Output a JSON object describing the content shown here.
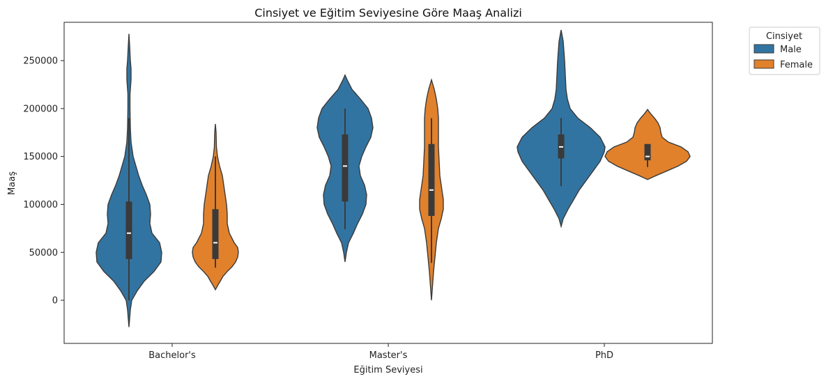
{
  "chart_data": {
    "type": "violin",
    "title": "Cinsiyet ve Eğitim Seviyesine Göre Maaş Analizi",
    "xlabel": "Eğitim Seviyesi",
    "ylabel": "Maaş",
    "categories": [
      "Bachelor's",
      "Master's",
      "PhD"
    ],
    "ylim": [
      -45000,
      290000
    ],
    "yticks": [
      0,
      50000,
      100000,
      150000,
      200000,
      250000
    ],
    "grid": false,
    "legend": {
      "title": "Cinsiyet",
      "position": "outside-top-right"
    },
    "series": [
      {
        "name": "Male",
        "color": "#3274a1",
        "violins": [
          {
            "category": "Bachelor's",
            "median": 70000,
            "q1": 43000,
            "q3": 103000,
            "whisker_low": 0,
            "whisker_high": 190000,
            "profile": [
              [
                -28000,
                0
              ],
              [
                -10000,
                2
              ],
              [
                0,
                4
              ],
              [
                10000,
                12
              ],
              [
                20000,
                22
              ],
              [
                30000,
                36
              ],
              [
                40000,
                46
              ],
              [
                50000,
                47
              ],
              [
                60000,
                44
              ],
              [
                70000,
                33
              ],
              [
                80000,
                30
              ],
              [
                90000,
                31
              ],
              [
                100000,
                30
              ],
              [
                110000,
                25
              ],
              [
                120000,
                19
              ],
              [
                130000,
                14
              ],
              [
                140000,
                10
              ],
              [
                150000,
                6
              ],
              [
                165000,
                3
              ],
              [
                180000,
                2
              ],
              [
                200000,
                1.5
              ],
              [
                215000,
                1.5
              ],
              [
                230000,
                3
              ],
              [
                242000,
                3
              ],
              [
                250000,
                2
              ],
              [
                265000,
                1
              ],
              [
                278000,
                0
              ]
            ]
          },
          {
            "category": "Master's",
            "median": 140000,
            "q1": 103000,
            "q3": 173000,
            "whisker_low": 74000,
            "whisker_high": 200000,
            "profile": [
              [
                40000,
                0
              ],
              [
                50000,
                2
              ],
              [
                60000,
                5
              ],
              [
                70000,
                12
              ],
              [
                80000,
                18
              ],
              [
                90000,
                25
              ],
              [
                100000,
                30
              ],
              [
                110000,
                31
              ],
              [
                120000,
                28
              ],
              [
                130000,
                22
              ],
              [
                140000,
                20
              ],
              [
                150000,
                24
              ],
              [
                160000,
                30
              ],
              [
                170000,
                37
              ],
              [
                180000,
                40
              ],
              [
                190000,
                38
              ],
              [
                200000,
                33
              ],
              [
                210000,
                22
              ],
              [
                220000,
                10
              ],
              [
                230000,
                3
              ],
              [
                235000,
                0
              ]
            ]
          },
          {
            "category": "PhD",
            "median": 160000,
            "q1": 148000,
            "q3": 173000,
            "whisker_low": 119000,
            "whisker_high": 190000,
            "profile": [
              [
                77000,
                0
              ],
              [
                85000,
                3
              ],
              [
                95000,
                10
              ],
              [
                105000,
                18
              ],
              [
                115000,
                26
              ],
              [
                125000,
                36
              ],
              [
                135000,
                46
              ],
              [
                145000,
                56
              ],
              [
                155000,
                62
              ],
              [
                160000,
                63
              ],
              [
                170000,
                56
              ],
              [
                180000,
                42
              ],
              [
                190000,
                24
              ],
              [
                200000,
                13
              ],
              [
                210000,
                9
              ],
              [
                220000,
                7
              ],
              [
                235000,
                6
              ],
              [
                250000,
                5
              ],
              [
                260000,
                4
              ],
              [
                270000,
                3
              ],
              [
                282000,
                0
              ]
            ]
          }
        ]
      },
      {
        "name": "Female",
        "color": "#e1812c",
        "violins": [
          {
            "category": "Bachelor's",
            "median": 60000,
            "q1": 43000,
            "q3": 95000,
            "whisker_low": 34000,
            "whisker_high": 150000,
            "profile": [
              [
                11000,
                0
              ],
              [
                15000,
                3
              ],
              [
                20000,
                7
              ],
              [
                25000,
                11
              ],
              [
                30000,
                17
              ],
              [
                35000,
                24
              ],
              [
                40000,
                29
              ],
              [
                45000,
                32
              ],
              [
                50000,
                33
              ],
              [
                55000,
                32
              ],
              [
                60000,
                27
              ],
              [
                70000,
                20
              ],
              [
                80000,
                17
              ],
              [
                90000,
                17
              ],
              [
                100000,
                16
              ],
              [
                110000,
                14
              ],
              [
                120000,
                12
              ],
              [
                130000,
                10
              ],
              [
                140000,
                6
              ],
              [
                150000,
                3
              ],
              [
                160000,
                1.5
              ],
              [
                175000,
                1
              ],
              [
                184000,
                0
              ]
            ]
          },
          {
            "category": "Master's",
            "median": 115000,
            "q1": 88000,
            "q3": 163000,
            "whisker_low": 39000,
            "whisker_high": 190000,
            "profile": [
              [
                0,
                0
              ],
              [
                15000,
                1.5
              ],
              [
                30000,
                3
              ],
              [
                45000,
                5
              ],
              [
                60000,
                7
              ],
              [
                75000,
                10
              ],
              [
                85000,
                14
              ],
              [
                95000,
                17
              ],
              [
                105000,
                17
              ],
              [
                115000,
                15
              ],
              [
                130000,
                12
              ],
              [
                145000,
                11
              ],
              [
                160000,
                10
              ],
              [
                175000,
                10
              ],
              [
                190000,
                10
              ],
              [
                200000,
                9
              ],
              [
                210000,
                7
              ],
              [
                220000,
                4
              ],
              [
                230000,
                0
              ]
            ]
          },
          {
            "category": "PhD",
            "median": 150000,
            "q1": 146000,
            "q3": 163000,
            "whisker_low": 139000,
            "whisker_high": 163000,
            "profile": [
              [
                126000,
                0
              ],
              [
                130000,
                12
              ],
              [
                135000,
                28
              ],
              [
                140000,
                44
              ],
              [
                145000,
                56
              ],
              [
                150000,
                61
              ],
              [
                155000,
                58
              ],
              [
                160000,
                48
              ],
              [
                165000,
                30
              ],
              [
                170000,
                21
              ],
              [
                175000,
                19
              ],
              [
                180000,
                18
              ],
              [
                185000,
                15
              ],
              [
                190000,
                10
              ],
              [
                195000,
                4
              ],
              [
                199000,
                0
              ]
            ]
          }
        ]
      }
    ]
  }
}
